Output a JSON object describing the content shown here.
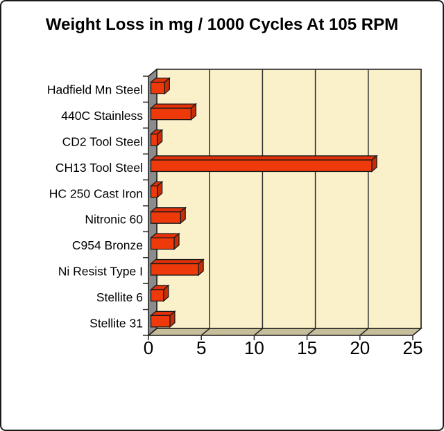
{
  "chart_data": {
    "type": "bar",
    "orientation": "horizontal",
    "style": "3d",
    "title": "Weight Loss in mg / 1000 Cycles At 105 RPM",
    "categories": [
      "Hadfield Mn Steel",
      "440C Stainless",
      "CD2 Tool Steel",
      "CH13 Tool Steel",
      "HC 250 Cast Iron",
      "Nitronic 60",
      "C954 Bronze",
      "Ni Resist Type I",
      "Stellite 6",
      "Stellite 31"
    ],
    "values": [
      1.3,
      3.8,
      0.6,
      20.9,
      0.6,
      2.8,
      2.2,
      4.5,
      1.2,
      1.8
    ],
    "xlabel": "",
    "ylabel": "",
    "xlim": [
      0,
      25
    ],
    "xticks": [
      0,
      5,
      10,
      15,
      20,
      25
    ],
    "grid": true,
    "legend": false,
    "colors": {
      "bar_front": "#EE3A0B",
      "bar_top": "#E23108",
      "bar_side": "#C92D06",
      "plot_bg": "#FAF0CA",
      "wall_side": "#8B8B8B",
      "floor": "#C6BD9B",
      "outline": "#1A1A1A",
      "gridline": "#2A2A2A",
      "text": "#000000"
    }
  }
}
